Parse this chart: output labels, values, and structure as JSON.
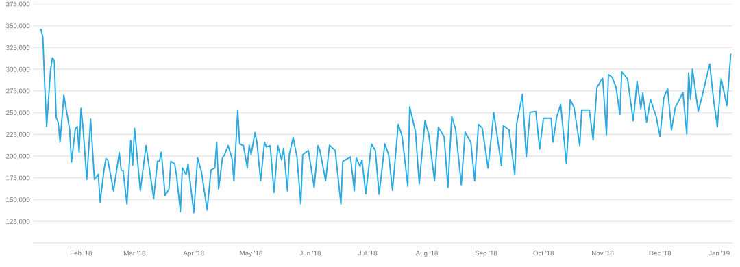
{
  "chart_data": {
    "type": "line",
    "x": [
      "2018-01-11",
      "2018-01-12",
      "2018-01-13",
      "2018-01-14",
      "2018-01-16",
      "2018-01-17",
      "2018-01-18",
      "2018-01-19",
      "2018-01-20",
      "2018-01-21",
      "2018-01-23",
      "2018-01-26",
      "2018-01-27",
      "2018-01-29",
      "2018-01-30",
      "2018-01-31",
      "2018-02-01",
      "2018-02-02",
      "2018-02-04",
      "2018-02-06",
      "2018-02-08",
      "2018-02-10",
      "2018-02-11",
      "2018-02-13",
      "2018-02-14",
      "2018-02-15",
      "2018-02-18",
      "2018-02-21",
      "2018-02-22",
      "2018-02-23",
      "2018-02-25",
      "2018-02-27",
      "2018-02-28",
      "2018-03-01",
      "2018-03-04",
      "2018-03-07",
      "2018-03-08",
      "2018-03-11",
      "2018-03-13",
      "2018-03-14",
      "2018-03-15",
      "2018-03-17",
      "2018-03-19",
      "2018-03-20",
      "2018-03-22",
      "2018-03-23",
      "2018-03-25",
      "2018-03-26",
      "2018-03-28",
      "2018-03-29",
      "2018-04-01",
      "2018-04-03",
      "2018-04-05",
      "2018-04-08",
      "2018-04-10",
      "2018-04-12",
      "2018-04-13",
      "2018-04-14",
      "2018-04-16",
      "2018-04-17",
      "2018-04-19",
      "2018-04-21",
      "2018-04-22",
      "2018-04-24",
      "2018-04-25",
      "2018-04-27",
      "2018-04-29",
      "2018-04-30",
      "2018-05-01",
      "2018-05-03",
      "2018-05-04",
      "2018-05-06",
      "2018-05-08",
      "2018-05-09",
      "2018-05-11",
      "2018-05-13",
      "2018-05-15",
      "2018-05-17",
      "2018-05-18",
      "2018-05-20",
      "2018-05-21",
      "2018-05-23",
      "2018-05-25",
      "2018-05-27",
      "2018-05-28",
      "2018-05-31",
      "2018-06-03",
      "2018-06-05",
      "2018-06-06",
      "2018-06-09",
      "2018-06-11",
      "2018-06-14",
      "2018-06-17",
      "2018-06-18",
      "2018-06-22",
      "2018-06-24",
      "2018-06-25",
      "2018-06-27",
      "2018-06-28",
      "2018-06-30",
      "2018-07-03",
      "2018-07-05",
      "2018-07-07",
      "2018-07-10",
      "2018-07-12",
      "2018-07-14",
      "2018-07-17",
      "2018-07-19",
      "2018-07-22",
      "2018-07-23",
      "2018-07-26",
      "2018-07-28",
      "2018-07-31",
      "2018-08-02",
      "2018-08-05",
      "2018-08-07",
      "2018-08-10",
      "2018-08-12",
      "2018-08-14",
      "2018-08-16",
      "2018-08-19",
      "2018-08-21",
      "2018-08-24",
      "2018-08-26",
      "2018-08-28",
      "2018-08-30",
      "2018-09-02",
      "2018-09-05",
      "2018-09-09",
      "2018-09-10",
      "2018-09-13",
      "2018-09-16",
      "2018-09-17",
      "2018-09-20",
      "2018-09-22",
      "2018-09-24",
      "2018-09-27",
      "2018-09-29",
      "2018-10-01",
      "2018-10-05",
      "2018-10-06",
      "2018-10-08",
      "2018-10-10",
      "2018-10-13",
      "2018-10-15",
      "2018-10-17",
      "2018-10-20",
      "2018-10-21",
      "2018-10-25",
      "2018-10-27",
      "2018-10-29",
      "2018-10-31",
      "2018-11-01",
      "2018-11-03",
      "2018-11-04",
      "2018-11-06",
      "2018-11-08",
      "2018-11-10",
      "2018-11-11",
      "2018-11-14",
      "2018-11-17",
      "2018-11-19",
      "2018-11-21",
      "2018-11-22",
      "2018-11-24",
      "2018-11-26",
      "2018-11-29",
      "2018-12-01",
      "2018-12-03",
      "2018-12-05",
      "2018-12-07",
      "2018-12-09",
      "2018-12-13",
      "2018-12-15",
      "2018-12-16",
      "2018-12-17",
      "2018-12-18",
      "2018-12-21",
      "2018-12-23",
      "2018-12-27",
      "2018-12-29",
      "2018-12-31",
      "2019-01-02",
      "2019-01-05",
      "2019-01-07"
    ],
    "series": [
      {
        "color": "#29abe2",
        "values": [
          345500,
          337000,
          281000,
          234000,
          298500,
          313000,
          310000,
          244000,
          239000,
          216000,
          270000,
          231000,
          193000,
          231000,
          234000,
          204500,
          255000,
          234000,
          173000,
          242500,
          173000,
          179000,
          147000,
          184000,
          197000,
          195500,
          160000,
          204000,
          184000,
          183000,
          145000,
          218000,
          189500,
          232000,
          160000,
          212000,
          197000,
          151000,
          194000,
          194000,
          204500,
          154500,
          162000,
          194000,
          191000,
          177000,
          136000,
          186500,
          178500,
          190500,
          135000,
          198000,
          182000,
          138000,
          184000,
          186500,
          216000,
          162000,
          198000,
          201000,
          212000,
          197000,
          171500,
          253000,
          214000,
          212000,
          186500,
          212500,
          201500,
          227000,
          216500,
          171500,
          216000,
          210500,
          212000,
          158000,
          212000,
          195500,
          209000,
          160000,
          201500,
          221500,
          199000,
          145000,
          201500,
          206500,
          164000,
          212000,
          206500,
          171500,
          212500,
          206500,
          145000,
          194000,
          199000,
          160000,
          198000,
          188000,
          195500,
          156500,
          214000,
          206500,
          156000,
          214000,
          201500,
          160500,
          236500,
          223000,
          165500,
          256500,
          228500,
          168000,
          240500,
          224500,
          171500,
          233000,
          222500,
          164000,
          245500,
          231000,
          167000,
          227500,
          216000,
          171500,
          236500,
          232000,
          186000,
          250000,
          189000,
          235000,
          230000,
          178500,
          237500,
          271000,
          199000,
          250500,
          251500,
          208000,
          243500,
          243500,
          216000,
          245500,
          259500,
          191000,
          265000,
          256000,
          212000,
          253000,
          253000,
          218500,
          279000,
          286500,
          289500,
          224500,
          294000,
          290500,
          279000,
          248000,
          297000,
          289000,
          240500,
          286000,
          254500,
          272500,
          239000,
          265500,
          245500,
          222500,
          267000,
          277500,
          230000,
          256000,
          273000,
          225500,
          296000,
          265500,
          300000,
          251500,
          268500,
          306000,
          265500,
          233500,
          289000,
          258000,
          317000
        ]
      }
    ],
    "xlim": [
      "2018-01-07",
      "2019-01-08"
    ],
    "xticks": [
      {
        "value": "2018-02-01",
        "label": "Feb '18"
      },
      {
        "value": "2018-03-01",
        "label": "Mar '18"
      },
      {
        "value": "2018-04-01",
        "label": "Apr '18"
      },
      {
        "value": "2018-05-01",
        "label": "May '18"
      },
      {
        "value": "2018-06-01",
        "label": "Jun '18"
      },
      {
        "value": "2018-07-01",
        "label": "Jul '18"
      },
      {
        "value": "2018-08-01",
        "label": "Aug '18"
      },
      {
        "value": "2018-09-01",
        "label": "Sep '18"
      },
      {
        "value": "2018-10-01",
        "label": "Oct '18"
      },
      {
        "value": "2018-11-01",
        "label": "Nov '18"
      },
      {
        "value": "2018-12-01",
        "label": "Dec '18"
      },
      {
        "value": "2019-01-01",
        "label": "Jan '19"
      }
    ],
    "ylim": [
      100000,
      375000
    ],
    "yticks": [
      {
        "value": 100000,
        "label": null
      },
      {
        "value": 125000,
        "label": "125,000"
      },
      {
        "value": 150000,
        "label": "150,000"
      },
      {
        "value": 175000,
        "label": "175,000"
      },
      {
        "value": 200000,
        "label": "200,000"
      },
      {
        "value": 225000,
        "label": "225,000"
      },
      {
        "value": 250000,
        "label": "250,000"
      },
      {
        "value": 275000,
        "label": "275,000"
      },
      {
        "value": 300000,
        "label": "300,000"
      },
      {
        "value": 325000,
        "label": "325,000"
      },
      {
        "value": 350000,
        "label": "350,000"
      },
      {
        "value": 375000,
        "label": "375,000"
      }
    ],
    "grid": "y",
    "marker": "none",
    "line_style": "solid"
  }
}
